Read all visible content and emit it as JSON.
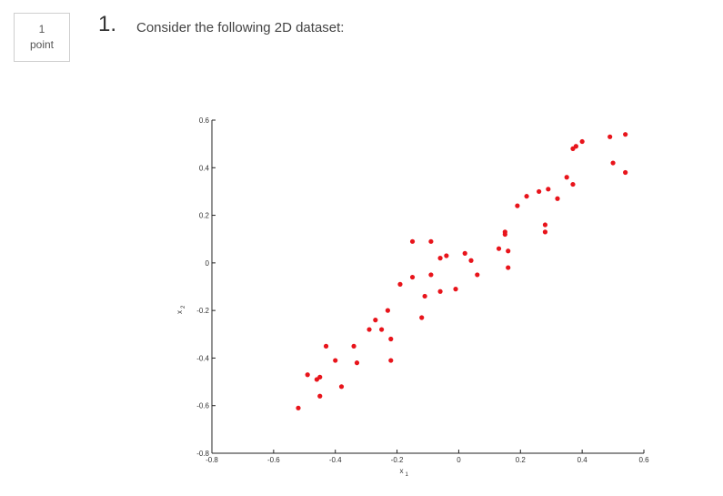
{
  "question": {
    "points_value": "1",
    "points_label": "point",
    "number": "1.",
    "text": "Consider the following 2D dataset:"
  },
  "chart_data": {
    "type": "scatter",
    "xlabel": "x",
    "xlabel_sub": "1",
    "ylabel": "x",
    "ylabel_sub": "2",
    "xlim": [
      -0.8,
      0.6
    ],
    "ylim": [
      -0.8,
      0.6
    ],
    "xticks": [
      "-0.8",
      "-0.6",
      "-0.4",
      "-0.2",
      "0",
      "0.2",
      "0.4",
      "0.6"
    ],
    "yticks": [
      "-0.8",
      "-0.6",
      "-0.4",
      "-0.2",
      "0",
      "0.2",
      "0.4",
      "0.6"
    ],
    "grid": false,
    "color": "#e8141b",
    "points": [
      {
        "x": -0.52,
        "y": -0.61
      },
      {
        "x": -0.49,
        "y": -0.47
      },
      {
        "x": -0.46,
        "y": -0.49
      },
      {
        "x": -0.45,
        "y": -0.48
      },
      {
        "x": -0.45,
        "y": -0.56
      },
      {
        "x": -0.43,
        "y": -0.35
      },
      {
        "x": -0.4,
        "y": -0.41
      },
      {
        "x": -0.38,
        "y": -0.52
      },
      {
        "x": -0.34,
        "y": -0.35
      },
      {
        "x": -0.33,
        "y": -0.42
      },
      {
        "x": -0.29,
        "y": -0.28
      },
      {
        "x": -0.27,
        "y": -0.24
      },
      {
        "x": -0.25,
        "y": -0.28
      },
      {
        "x": -0.23,
        "y": -0.2
      },
      {
        "x": -0.22,
        "y": -0.32
      },
      {
        "x": -0.22,
        "y": -0.41
      },
      {
        "x": -0.19,
        "y": -0.09
      },
      {
        "x": -0.15,
        "y": 0.09
      },
      {
        "x": -0.15,
        "y": -0.06
      },
      {
        "x": -0.12,
        "y": -0.23
      },
      {
        "x": -0.11,
        "y": -0.14
      },
      {
        "x": -0.09,
        "y": 0.09
      },
      {
        "x": -0.09,
        "y": -0.05
      },
      {
        "x": -0.06,
        "y": 0.02
      },
      {
        "x": -0.06,
        "y": -0.12
      },
      {
        "x": -0.04,
        "y": 0.03
      },
      {
        "x": -0.01,
        "y": -0.11
      },
      {
        "x": 0.02,
        "y": 0.04
      },
      {
        "x": 0.04,
        "y": 0.01
      },
      {
        "x": 0.06,
        "y": -0.05
      },
      {
        "x": 0.13,
        "y": 0.06
      },
      {
        "x": 0.15,
        "y": 0.13
      },
      {
        "x": 0.15,
        "y": 0.12
      },
      {
        "x": 0.16,
        "y": 0.05
      },
      {
        "x": 0.16,
        "y": -0.02
      },
      {
        "x": 0.19,
        "y": 0.24
      },
      {
        "x": 0.22,
        "y": 0.28
      },
      {
        "x": 0.26,
        "y": 0.3
      },
      {
        "x": 0.28,
        "y": 0.16
      },
      {
        "x": 0.28,
        "y": 0.13
      },
      {
        "x": 0.29,
        "y": 0.31
      },
      {
        "x": 0.32,
        "y": 0.27
      },
      {
        "x": 0.35,
        "y": 0.36
      },
      {
        "x": 0.37,
        "y": 0.33
      },
      {
        "x": 0.37,
        "y": 0.48
      },
      {
        "x": 0.38,
        "y": 0.49
      },
      {
        "x": 0.4,
        "y": 0.51
      },
      {
        "x": 0.49,
        "y": 0.53
      },
      {
        "x": 0.5,
        "y": 0.42
      },
      {
        "x": 0.54,
        "y": 0.54
      },
      {
        "x": 0.54,
        "y": 0.38
      }
    ]
  }
}
